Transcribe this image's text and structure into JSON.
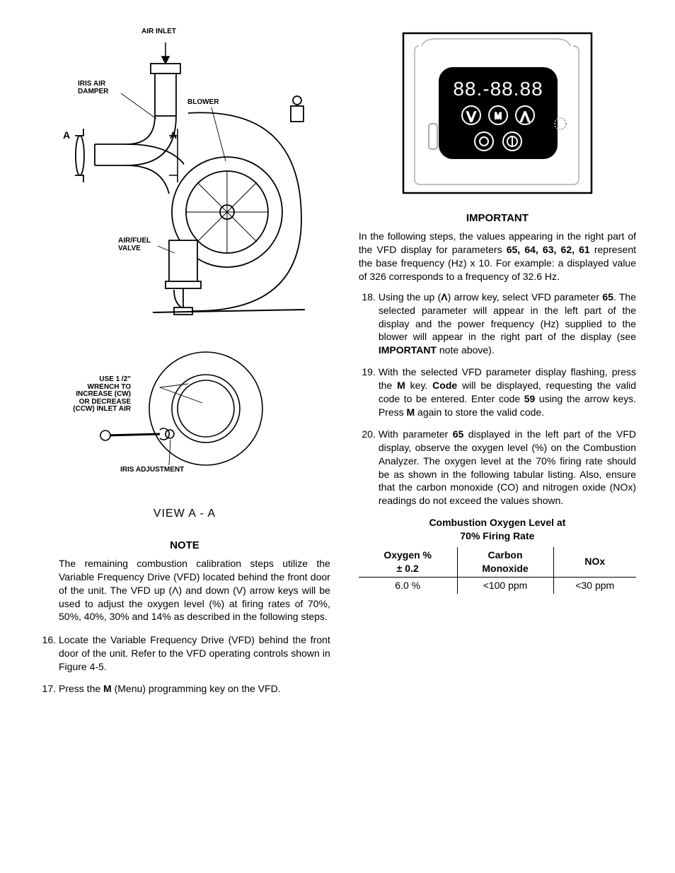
{
  "left": {
    "diagram": {
      "labels": {
        "air_inlet": "AIR INLET",
        "iris_air_damper": "IRIS AIR\nDAMPER",
        "blower": "BLOWER",
        "A_left": "A",
        "A_right": "A",
        "air_fuel_valve": "AIR/FUEL\nVALVE",
        "use_wrench": "USE 1 /2\"\nWRENCH TO\nINCREASE (CW)\nOR DECREASE\n(CCW) INLET AIR",
        "iris_adjustment": "IRIS ADJUSTMENT"
      },
      "view_caption": "VIEW  A - A",
      "colors": {
        "stroke": "#000000",
        "fill": "#ffffff"
      }
    },
    "note": {
      "heading": "NOTE",
      "body": "The remaining combustion calibration steps utilize the Variable Frequency Drive (VFD) located behind the front door of the unit. The VFD up (Λ) and down (V) arrow keys will be used to adjust the oxygen level (%) at firing rates of 70%, 50%, 40%, 30% and 14% as described in the following steps."
    },
    "steps": [
      {
        "n": "16.",
        "text": "Locate the Variable Frequency Drive (VFD) behind the front door of the unit. Refer to the VFD operating controls shown in Figure 4-5."
      },
      {
        "n": "17.",
        "text_pre": "Press the ",
        "bold1": "M",
        "text_post": " (Menu) programming key on the VFD."
      }
    ]
  },
  "right": {
    "vfd": {
      "display_text": "88.-88.88",
      "btn_down": "⋁",
      "btn_M": "M",
      "btn_up": "⋀",
      "btn_stop": "◯",
      "btn_start": "⏵",
      "colors": {
        "panel": "#000000",
        "glyph": "#ffffff",
        "outline": "#8a8a8a"
      }
    },
    "important": {
      "heading": "IMPORTANT",
      "body_pre": "In the following steps, the values appearing in the right part of the VFD display for parameters ",
      "params": "65, 64, 63, 62, 61",
      "body_post": " represent the base frequency (Hz) x 10. For example: a displayed value of 326 corresponds to a frequency of 32.6 Hz."
    },
    "steps": [
      {
        "n": "18.",
        "segments": [
          {
            "t": "Using the up (",
            "b": false
          },
          {
            "t": "Λ",
            "b": true
          },
          {
            "t": ") arrow key, select VFD parameter ",
            "b": false
          },
          {
            "t": "65",
            "b": true
          },
          {
            "t": ". The selected parameter will appear in the left part of the display and the power frequency (Hz) supplied to the blower will appear in the right part of the display (see ",
            "b": false
          },
          {
            "t": "IMPORTANT",
            "b": true
          },
          {
            "t": " note above).",
            "b": false
          }
        ]
      },
      {
        "n": "19.",
        "segments": [
          {
            "t": "With the selected VFD parameter display flashing, press the ",
            "b": false
          },
          {
            "t": "M",
            "b": true
          },
          {
            "t": " key. ",
            "b": false
          },
          {
            "t": "Code",
            "b": true
          },
          {
            "t": " will be displayed, requesting the valid code to be entered. Enter code ",
            "b": false
          },
          {
            "t": "59",
            "b": true
          },
          {
            "t": " using the arrow keys. Press ",
            "b": false
          },
          {
            "t": "M",
            "b": true
          },
          {
            "t": " again to store the valid code.",
            "b": false
          }
        ]
      },
      {
        "n": "20.",
        "segments": [
          {
            "t": "With parameter ",
            "b": false
          },
          {
            "t": "65",
            "b": true
          },
          {
            "t": " displayed in the left part of the VFD display, observe the oxygen level (%) on the Combustion Analyzer. The oxygen level at the 70% firing rate should be as shown in the following tabular listing. Also, ensure that the carbon monoxide (CO) and nitrogen oxide (NOx) readings do not exceed the values shown.",
            "b": false
          }
        ]
      }
    ],
    "table": {
      "title": "Combustion Oxygen Level at\n70% Firing Rate",
      "columns": [
        {
          "line1": "Oxygen %",
          "line2": "± 0.2"
        },
        {
          "line1": "Carbon",
          "line2": "Monoxide"
        },
        {
          "line1": "",
          "line2": "NOx"
        }
      ],
      "rows": [
        [
          "6.0 %",
          "<100 ppm",
          "<30 ppm"
        ]
      ]
    }
  }
}
